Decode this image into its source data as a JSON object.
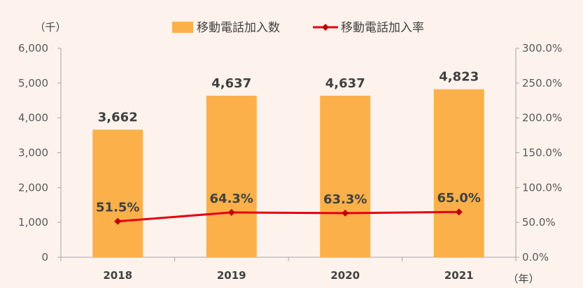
{
  "chart_data": {
    "type": "bar",
    "categories": [
      "2018",
      "2019",
      "2020",
      "2021"
    ],
    "series": [
      {
        "name": "移動電話加入数",
        "type": "bar",
        "axis": "left",
        "values": [
          3662,
          4637,
          4637,
          4823
        ],
        "labels": [
          "3,662",
          "4,637",
          "4,637",
          "4,823"
        ]
      },
      {
        "name": "移動電話加入率",
        "type": "line",
        "axis": "right",
        "values": [
          51.5,
          64.3,
          63.3,
          65.0
        ],
        "labels": [
          "51.5%",
          "64.3%",
          "63.3%",
          "65.0%"
        ]
      }
    ],
    "left_axis": {
      "unit": "（千）",
      "ylim": [
        0,
        6000
      ],
      "ticks": [
        0,
        1000,
        2000,
        3000,
        4000,
        5000,
        6000
      ],
      "tick_labels": [
        "0",
        "1,000",
        "2,000",
        "3,000",
        "4,000",
        "5,000",
        "6,000"
      ]
    },
    "right_axis": {
      "ylim": [
        0,
        300
      ],
      "ticks": [
        0,
        50,
        100,
        150,
        200,
        250,
        300
      ],
      "tick_labels": [
        "0.0%",
        "50.0%",
        "100.0%",
        "150.0%",
        "200.0%",
        "250.0%",
        "300.0%"
      ]
    },
    "x_axis_unit": "（年）",
    "grid": false,
    "legend_position": "top-center",
    "colors": {
      "bar": "#fbb04a",
      "line": "#e60012",
      "marker": "#c00000",
      "axis": "#a6a6a6"
    }
  }
}
